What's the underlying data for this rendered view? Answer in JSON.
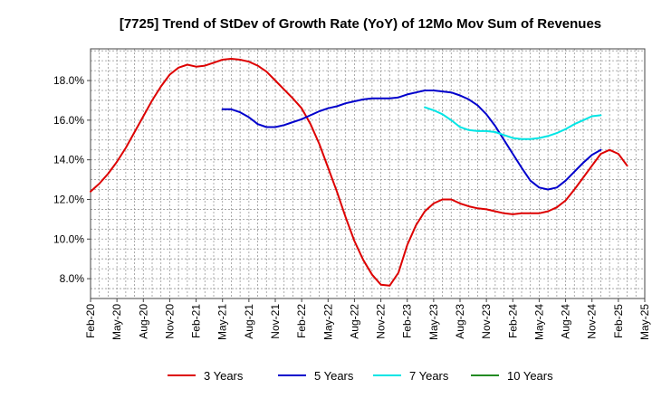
{
  "chart_data": {
    "type": "line",
    "title": "[7725]  Trend of StDev of Growth Rate (YoY) of 12Mo Mov Sum of Revenues",
    "xlabel": "",
    "ylabel": "",
    "x_ticks": [
      "Feb-20",
      "May-20",
      "Aug-20",
      "Nov-20",
      "Feb-21",
      "May-21",
      "Aug-21",
      "Nov-21",
      "Feb-22",
      "May-22",
      "Aug-22",
      "Nov-22",
      "Feb-23",
      "May-23",
      "Aug-23",
      "Nov-23",
      "Feb-24",
      "May-24",
      "Aug-24",
      "Nov-24",
      "Feb-25",
      "May-25"
    ],
    "y_ticks": [
      8.0,
      10.0,
      12.0,
      14.0,
      16.0,
      18.0
    ],
    "y_tick_labels": [
      "8.0%",
      "10.0%",
      "12.0%",
      "14.0%",
      "16.0%",
      "18.0%"
    ],
    "ylim": [
      7.0,
      19.6
    ],
    "x_months_range": [
      0,
      63
    ],
    "grid": true,
    "legend_position": "bottom",
    "series": [
      {
        "name": "3 Years",
        "color": "#dd0000",
        "points": [
          [
            0,
            12.4
          ],
          [
            1,
            12.8
          ],
          [
            2,
            13.3
          ],
          [
            3,
            13.9
          ],
          [
            4,
            14.6
          ],
          [
            5,
            15.4
          ],
          [
            6,
            16.2
          ],
          [
            7,
            17.0
          ],
          [
            8,
            17.7
          ],
          [
            9,
            18.3
          ],
          [
            10,
            18.65
          ],
          [
            11,
            18.8
          ],
          [
            12,
            18.7
          ],
          [
            13,
            18.75
          ],
          [
            14,
            18.9
          ],
          [
            15,
            19.05
          ],
          [
            16,
            19.1
          ],
          [
            17,
            19.05
          ],
          [
            18,
            18.95
          ],
          [
            19,
            18.75
          ],
          [
            20,
            18.45
          ],
          [
            21,
            18.0
          ],
          [
            22,
            17.55
          ],
          [
            23,
            17.1
          ],
          [
            24,
            16.6
          ],
          [
            25,
            15.8
          ],
          [
            26,
            14.8
          ],
          [
            27,
            13.6
          ],
          [
            28,
            12.4
          ],
          [
            29,
            11.1
          ],
          [
            30,
            9.9
          ],
          [
            31,
            8.95
          ],
          [
            32,
            8.2
          ],
          [
            33,
            7.7
          ],
          [
            34,
            7.65
          ],
          [
            35,
            8.3
          ],
          [
            36,
            9.7
          ],
          [
            37,
            10.7
          ],
          [
            38,
            11.4
          ],
          [
            39,
            11.8
          ],
          [
            40,
            12.0
          ],
          [
            41,
            12.0
          ],
          [
            42,
            11.8
          ],
          [
            43,
            11.65
          ],
          [
            44,
            11.55
          ],
          [
            45,
            11.5
          ],
          [
            46,
            11.4
          ],
          [
            47,
            11.3
          ],
          [
            48,
            11.25
          ],
          [
            49,
            11.3
          ],
          [
            50,
            11.3
          ],
          [
            51,
            11.3
          ],
          [
            52,
            11.4
          ],
          [
            53,
            11.6
          ],
          [
            54,
            11.95
          ],
          [
            55,
            12.5
          ],
          [
            56,
            13.1
          ],
          [
            57,
            13.7
          ],
          [
            58,
            14.3
          ],
          [
            59,
            14.5
          ],
          [
            60,
            14.3
          ],
          [
            61,
            13.7
          ]
        ]
      },
      {
        "name": "5 Years",
        "color": "#0000cc",
        "points": [
          [
            15,
            16.55
          ],
          [
            16,
            16.55
          ],
          [
            17,
            16.4
          ],
          [
            18,
            16.15
          ],
          [
            19,
            15.8
          ],
          [
            20,
            15.65
          ],
          [
            21,
            15.65
          ],
          [
            22,
            15.75
          ],
          [
            23,
            15.9
          ],
          [
            24,
            16.05
          ],
          [
            25,
            16.25
          ],
          [
            26,
            16.45
          ],
          [
            27,
            16.6
          ],
          [
            28,
            16.7
          ],
          [
            29,
            16.85
          ],
          [
            30,
            16.95
          ],
          [
            31,
            17.05
          ],
          [
            32,
            17.1
          ],
          [
            33,
            17.1
          ],
          [
            34,
            17.1
          ],
          [
            35,
            17.15
          ],
          [
            36,
            17.3
          ],
          [
            37,
            17.4
          ],
          [
            38,
            17.5
          ],
          [
            39,
            17.5
          ],
          [
            40,
            17.45
          ],
          [
            41,
            17.4
          ],
          [
            42,
            17.25
          ],
          [
            43,
            17.05
          ],
          [
            44,
            16.75
          ],
          [
            45,
            16.3
          ],
          [
            46,
            15.7
          ],
          [
            47,
            15.0
          ],
          [
            48,
            14.3
          ],
          [
            49,
            13.6
          ],
          [
            50,
            12.95
          ],
          [
            51,
            12.6
          ],
          [
            52,
            12.5
          ],
          [
            53,
            12.6
          ],
          [
            54,
            12.95
          ],
          [
            55,
            13.4
          ],
          [
            56,
            13.85
          ],
          [
            57,
            14.25
          ],
          [
            58,
            14.5
          ]
        ]
      },
      {
        "name": "7 Years",
        "color": "#00e5e5",
        "points": [
          [
            38,
            16.65
          ],
          [
            39,
            16.5
          ],
          [
            40,
            16.3
          ],
          [
            41,
            16.0
          ],
          [
            42,
            15.65
          ],
          [
            43,
            15.5
          ],
          [
            44,
            15.45
          ],
          [
            45,
            15.45
          ],
          [
            46,
            15.4
          ],
          [
            47,
            15.25
          ],
          [
            48,
            15.1
          ],
          [
            49,
            15.05
          ],
          [
            50,
            15.05
          ],
          [
            51,
            15.1
          ],
          [
            52,
            15.2
          ],
          [
            53,
            15.35
          ],
          [
            54,
            15.55
          ],
          [
            55,
            15.8
          ],
          [
            56,
            16.0
          ],
          [
            57,
            16.2
          ],
          [
            58,
            16.25
          ]
        ]
      },
      {
        "name": "10 Years",
        "color": "#228b22",
        "points": []
      }
    ]
  }
}
